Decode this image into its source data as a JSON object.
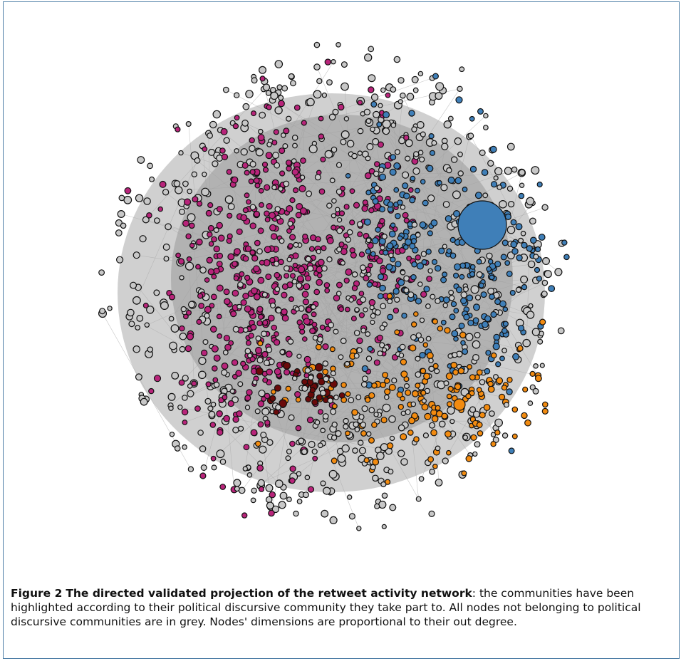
{
  "figure": {
    "caption_label": "Figure 2",
    "caption_title": "The directed validated projection of the retweet activity network",
    "caption_text": ": the communities have been highlighted according to their political discursive community they take part to. All nodes not belonging to political discursive communities are in grey. Nodes' dimensions are proportional to their out degree."
  },
  "colors": {
    "magenta_community": "#b8247a",
    "blue_community": "#3f7fb8",
    "orange_community": "#f28b10",
    "darkred_community": "#6a0a0a",
    "grey_nodes": "#c8c8c8",
    "edges": "#b0b0b0",
    "node_outline": "#111111",
    "frame": "#4d7ea6"
  }
}
